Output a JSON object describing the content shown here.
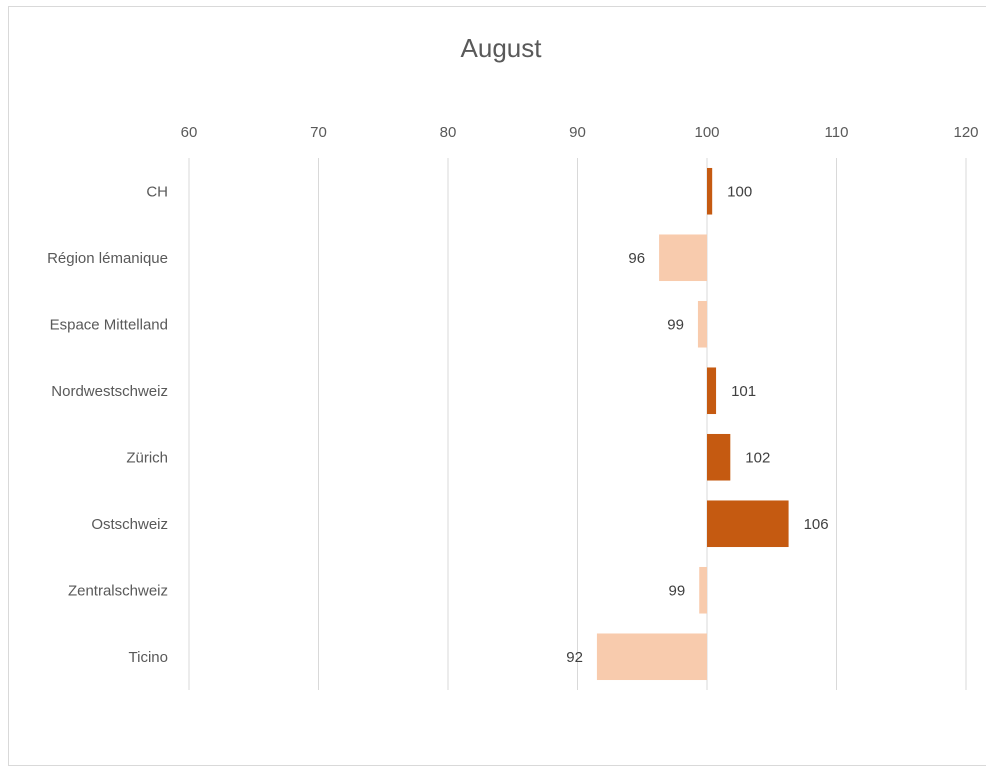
{
  "chart_data": {
    "type": "bar",
    "orientation": "horizontal",
    "title": "August",
    "xlabel": "",
    "ylabel": "",
    "xlim": [
      60,
      120
    ],
    "x_ticks": [
      60,
      70,
      80,
      90,
      100,
      110,
      120
    ],
    "baseline": 100,
    "grid": true,
    "legend": "none",
    "categories": [
      "CH",
      "Région lémanique",
      "Espace Mittelland",
      "Nordwestschweiz",
      "Zürich",
      "Ostschweiz",
      "Zentralschweiz",
      "Ticino"
    ],
    "values": [
      100.4,
      96.3,
      99.3,
      100.7,
      101.8,
      106.3,
      99.4,
      91.5
    ],
    "data_labels": [
      "100",
      "96",
      "99",
      "101",
      "102",
      "106",
      "99",
      "92"
    ],
    "colors": {
      "above_baseline": "#c55a11",
      "below_baseline": "#f8cbad",
      "gridline": "#d9d9d9",
      "text": "#595959"
    }
  }
}
